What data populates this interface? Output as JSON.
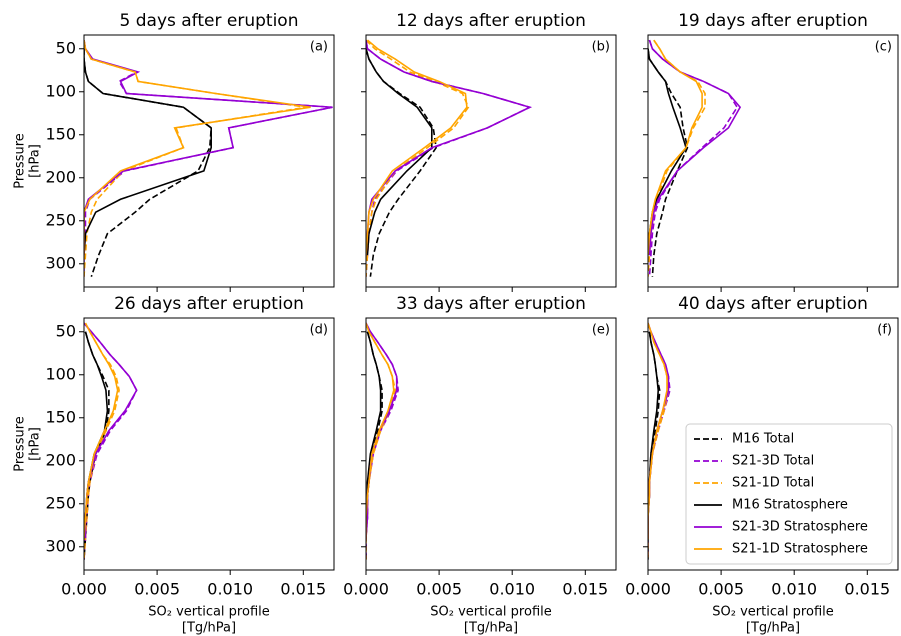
{
  "chart_data": [
    {
      "type": "line",
      "title": "5 days after eruption",
      "panel_label": "(a)",
      "ylabel": [
        "Pressure",
        "[hPa]"
      ],
      "y": [
        40,
        50,
        62,
        77,
        88,
        102,
        118,
        142,
        165,
        192,
        225,
        240,
        265,
        290,
        315
      ],
      "xlim": [
        0,
        0.0171
      ],
      "ylim": [
        327,
        34
      ],
      "xticks": [
        0,
        0.005,
        0.01,
        0.015
      ],
      "show_xticklabels": false,
      "yticks": [
        50,
        100,
        150,
        200,
        250,
        300
      ],
      "series": [
        {
          "color": "#000000",
          "dash": true,
          "values": [
            null,
            0,
            0,
            0.0001,
            0.0003,
            0.0013,
            0.0068,
            0.0087,
            0.0086,
            0.0078,
            0.0045,
            0.0035,
            0.0016,
            0.001,
            0.0005
          ]
        },
        {
          "color": "#9400d3",
          "dash": true,
          "values": [
            0,
            0.0001,
            0.0005,
            0.0036,
            0.0024,
            0.0029,
            0.017,
            0.0099,
            0.0102,
            0.0028,
            0.0004,
            0.0001,
            0.0001,
            0,
            0
          ]
        },
        {
          "color": "#ffa500",
          "dash": true,
          "values": [
            0,
            0.0001,
            0.0005,
            0.0035,
            0.0037,
            0.009,
            0.0152,
            0.0063,
            0.0068,
            0.0027,
            0.0009,
            0.0005,
            0.0002,
            0.0001,
            0
          ]
        },
        {
          "color": "#000000",
          "dash": false,
          "values": [
            null,
            0,
            0,
            0.0001,
            0.0003,
            0.0013,
            0.0068,
            0.0087,
            0.0087,
            0.0082,
            0.0025,
            0.0008,
            0.0001,
            0,
            null
          ]
        },
        {
          "color": "#9400d3",
          "dash": false,
          "values": [
            0,
            0.0001,
            0.0006,
            0.0037,
            0.0025,
            0.0029,
            0.017,
            0.0099,
            0.0102,
            0.0027,
            0.0003,
            0,
            0,
            0,
            null
          ]
        },
        {
          "color": "#ffa500",
          "dash": false,
          "values": [
            0,
            0.0001,
            0.0005,
            0.0035,
            0.0037,
            0.009,
            0.0155,
            0.0062,
            0.0068,
            0.0025,
            0.0004,
            0,
            0,
            0,
            null
          ]
        }
      ]
    },
    {
      "type": "line",
      "title": "12 days after eruption",
      "panel_label": "(b)",
      "y": [
        40,
        50,
        62,
        77,
        88,
        102,
        118,
        142,
        165,
        192,
        225,
        240,
        265,
        290,
        315
      ],
      "xlim": [
        0,
        0.0171
      ],
      "ylim": [
        327,
        34
      ],
      "xticks": [
        0,
        0.005,
        0.01,
        0.015
      ],
      "show_xticklabels": false,
      "yticks": [
        50,
        100,
        150,
        200,
        250,
        300
      ],
      "show_yticklabels": false,
      "series": [
        {
          "color": "#000000",
          "dash": true,
          "values": [
            null,
            0,
            0.0002,
            0.0007,
            0.0012,
            0.0023,
            0.0037,
            0.0046,
            0.0048,
            0.0037,
            0.0022,
            0.0016,
            0.0009,
            0.0005,
            0.0003
          ]
        },
        {
          "color": "#9400d3",
          "dash": true,
          "values": [
            0,
            0.0001,
            0.001,
            0.0026,
            0.0045,
            0.008,
            0.0112,
            0.0083,
            0.0046,
            0.0021,
            0.0006,
            0.0004,
            0.0002,
            0.0001,
            0
          ]
        },
        {
          "color": "#ffa500",
          "dash": true,
          "values": [
            0,
            0.0006,
            0.0017,
            0.003,
            0.0047,
            0.0066,
            0.007,
            0.006,
            0.0042,
            0.002,
            0.0007,
            0.0004,
            0.0002,
            0.0001,
            0
          ]
        },
        {
          "color": "#000000",
          "dash": false,
          "values": [
            null,
            0,
            0.0002,
            0.0007,
            0.0012,
            0.0022,
            0.0035,
            0.0045,
            0.0045,
            0.0028,
            0.001,
            0.0006,
            0.0002,
            0.0001,
            null
          ]
        },
        {
          "color": "#9400d3",
          "dash": false,
          "values": [
            0,
            0.0001,
            0.001,
            0.0026,
            0.0045,
            0.008,
            0.0112,
            0.0083,
            0.0045,
            0.002,
            0.0004,
            0.0002,
            0.0001,
            0,
            null
          ]
        },
        {
          "color": "#ffa500",
          "dash": false,
          "values": [
            0.0001,
            0.0008,
            0.002,
            0.0033,
            0.005,
            0.0068,
            0.0069,
            0.0058,
            0.004,
            0.0018,
            0.0005,
            0.0002,
            0.0001,
            0,
            null
          ]
        }
      ]
    },
    {
      "type": "line",
      "title": "19 days after eruption",
      "panel_label": "(c)",
      "y": [
        40,
        50,
        62,
        77,
        88,
        102,
        118,
        142,
        165,
        192,
        225,
        240,
        265,
        290,
        315
      ],
      "xlim": [
        0,
        0.0171
      ],
      "ylim": [
        327,
        34
      ],
      "xticks": [
        0,
        0.005,
        0.01,
        0.015
      ],
      "show_xticklabels": false,
      "yticks": [
        50,
        100,
        150,
        200,
        250,
        300
      ],
      "show_yticklabels": false,
      "series": [
        {
          "color": "#000000",
          "dash": true,
          "values": [
            null,
            0,
            0.0001,
            0.0007,
            0.0012,
            0.0016,
            0.0022,
            0.0024,
            0.0027,
            0.002,
            0.0012,
            0.001,
            0.0006,
            0.0004,
            0.0003
          ]
        },
        {
          "color": "#9400d3",
          "dash": true,
          "values": [
            0.0001,
            0.0003,
            0.001,
            0.0022,
            0.0038,
            0.0055,
            0.0061,
            0.0052,
            0.0037,
            0.002,
            0.0008,
            0.0005,
            0.0003,
            0.0002,
            0.0001
          ]
        },
        {
          "color": "#ffa500",
          "dash": true,
          "values": [
            0.0004,
            0.0008,
            0.0012,
            0.0022,
            0.0034,
            0.0039,
            0.0039,
            0.0031,
            0.0026,
            0.0013,
            0.0006,
            0.0004,
            0.0002,
            0.0001,
            0
          ]
        },
        {
          "color": "#000000",
          "dash": false,
          "values": [
            null,
            0,
            0.0001,
            0.0007,
            0.0012,
            0.0014,
            0.0017,
            0.0022,
            0.0026,
            0.0016,
            0.0006,
            0.0003,
            0.0001,
            0.0001,
            null
          ]
        },
        {
          "color": "#9400d3",
          "dash": false,
          "values": [
            0.0001,
            0.0003,
            0.001,
            0.0022,
            0.0038,
            0.0055,
            0.0063,
            0.0055,
            0.0038,
            0.002,
            0.0007,
            0.0004,
            0.0002,
            0.0001,
            null
          ]
        },
        {
          "color": "#ffa500",
          "dash": false,
          "values": [
            0.0004,
            0.0008,
            0.0012,
            0.0022,
            0.0033,
            0.0037,
            0.0037,
            0.003,
            0.0026,
            0.0012,
            0.0005,
            0.0003,
            0.0001,
            0,
            null
          ]
        }
      ]
    },
    {
      "type": "line",
      "title": "26 days after eruption",
      "panel_label": "(d)",
      "ylabel": [
        "Pressure",
        "[hPa]"
      ],
      "xlabel": [
        "SO₂ vertical profile",
        "[Tg/hPa]"
      ],
      "y": [
        40,
        50,
        62,
        77,
        88,
        102,
        118,
        142,
        165,
        192,
        225,
        240,
        265,
        290,
        315
      ],
      "xlim": [
        0,
        0.0171
      ],
      "ylim": [
        327,
        34
      ],
      "xticks": [
        {
          "value": 0,
          "label": "0.000"
        },
        0.005,
        {
          "value": 0.01,
          "label": "0.010"
        },
        0.015
      ],
      "yticks": [
        50,
        100,
        150,
        200,
        250,
        300
      ],
      "series": [
        {
          "color": "#000000",
          "dash": true,
          "values": [
            null,
            0.0001,
            0.0003,
            0.0006,
            0.0009,
            0.0013,
            0.0017,
            0.0017,
            0.0015,
            0.0008,
            0.0004,
            0.0003,
            0.0002,
            0.0001,
            0
          ]
        },
        {
          "color": "#9400d3",
          "dash": true,
          "values": [
            0,
            0.0005,
            0.0011,
            0.0018,
            0.0024,
            0.0031,
            0.0036,
            0.0029,
            0.0018,
            0.0009,
            0.0004,
            0.0003,
            0.0002,
            0.0001,
            0
          ]
        },
        {
          "color": "#ffa500",
          "dash": true,
          "values": [
            0.0001,
            0.0004,
            0.0008,
            0.0013,
            0.0018,
            0.0022,
            0.0024,
            0.0021,
            0.0015,
            0.0008,
            0.0004,
            0.0003,
            0.0002,
            0.0001,
            0
          ]
        },
        {
          "color": "#000000",
          "dash": false,
          "values": [
            null,
            0.0001,
            0.0003,
            0.0006,
            0.0009,
            0.0012,
            0.0015,
            0.0016,
            0.0014,
            0.0007,
            0.0003,
            0.0002,
            0.0001,
            0,
            null
          ]
        },
        {
          "color": "#9400d3",
          "dash": false,
          "values": [
            0,
            0.0005,
            0.0011,
            0.0018,
            0.0024,
            0.0031,
            0.0036,
            0.0028,
            0.0017,
            0.0008,
            0.0003,
            0.0002,
            0.0001,
            0.0001,
            null
          ]
        },
        {
          "color": "#ffa500",
          "dash": false,
          "values": [
            0.0001,
            0.0004,
            0.0008,
            0.0013,
            0.0017,
            0.0021,
            0.0023,
            0.002,
            0.0014,
            0.0007,
            0.0003,
            0.0002,
            0.0001,
            0,
            null
          ]
        }
      ]
    },
    {
      "type": "line",
      "title": "33 days after eruption",
      "panel_label": "(e)",
      "xlabel": [
        "SO₂ vertical profile",
        "[Tg/hPa]"
      ],
      "y": [
        40,
        50,
        62,
        77,
        88,
        102,
        118,
        142,
        165,
        192,
        225,
        240,
        265,
        290,
        315
      ],
      "xlim": [
        0,
        0.0171
      ],
      "ylim": [
        327,
        34
      ],
      "xticks": [
        {
          "value": 0,
          "label": "0.000"
        },
        0.005,
        {
          "value": 0.01,
          "label": "0.010"
        },
        0.015
      ],
      "yticks": [
        50,
        100,
        150,
        200,
        250,
        300
      ],
      "show_yticklabels": false,
      "series": [
        {
          "color": "#000000",
          "dash": true,
          "values": [
            null,
            0.0001,
            0.0003,
            0.0005,
            0.0007,
            0.0009,
            0.0011,
            0.0011,
            0.0008,
            0.0004,
            0.0002,
            0.0001,
            0.0001,
            0,
            0
          ]
        },
        {
          "color": "#9400d3",
          "dash": true,
          "values": [
            0,
            0.0003,
            0.0008,
            0.0014,
            0.0018,
            0.0021,
            0.0022,
            0.0017,
            0.001,
            0.0005,
            0.0002,
            0.0001,
            0.0001,
            0,
            0
          ]
        },
        {
          "color": "#ffa500",
          "dash": true,
          "values": [
            0,
            0.0002,
            0.0006,
            0.0011,
            0.0015,
            0.0018,
            0.002,
            0.0016,
            0.001,
            0.0005,
            0.0002,
            0.0001,
            0.0001,
            0,
            0
          ]
        },
        {
          "color": "#000000",
          "dash": false,
          "values": [
            null,
            0.0001,
            0.0003,
            0.0005,
            0.0007,
            0.0009,
            0.001,
            0.001,
            0.0007,
            0.0003,
            0.0001,
            0.0001,
            0,
            0,
            null
          ]
        },
        {
          "color": "#9400d3",
          "dash": false,
          "values": [
            0,
            0.0003,
            0.0008,
            0.0014,
            0.0018,
            0.0021,
            0.0021,
            0.0016,
            0.0009,
            0.0004,
            0.0002,
            0.0001,
            0.0001,
            0,
            null
          ]
        },
        {
          "color": "#ffa500",
          "dash": false,
          "values": [
            0,
            0.0002,
            0.0006,
            0.0011,
            0.0015,
            0.0018,
            0.0019,
            0.0015,
            0.0009,
            0.0004,
            0.0002,
            0.0001,
            0,
            0,
            null
          ]
        }
      ]
    },
    {
      "type": "line",
      "title": "40 days after eruption",
      "panel_label": "(f)",
      "xlabel": [
        "SO₂ vertical profile",
        "[Tg/hPa]"
      ],
      "legend": "lower right",
      "y": [
        40,
        50,
        62,
        77,
        88,
        102,
        118,
        142,
        165,
        192,
        225,
        240,
        265,
        290,
        315
      ],
      "xlim": [
        0,
        0.0171
      ],
      "ylim": [
        327,
        34
      ],
      "xticks": [
        {
          "value": 0,
          "label": "0.000"
        },
        0.005,
        {
          "value": 0.01,
          "label": "0.010"
        },
        0.015
      ],
      "yticks": [
        50,
        100,
        150,
        200,
        250,
        300
      ],
      "show_yticklabels": false,
      "series": [
        {
          "name": "M16 Total",
          "color": "#000000",
          "dash": true,
          "values": [
            null,
            0.0001,
            0.0002,
            0.0004,
            0.0005,
            0.0006,
            0.0008,
            0.0007,
            0.0005,
            0.0002,
            0.0001,
            0.0001,
            0,
            0,
            0
          ]
        },
        {
          "name": "S21-3D Total",
          "color": "#9400d3",
          "dash": true,
          "values": [
            0,
            0.0002,
            0.0005,
            0.0009,
            0.0012,
            0.0014,
            0.0015,
            0.0011,
            0.0007,
            0.0003,
            0.0001,
            0.0001,
            0,
            0,
            0
          ]
        },
        {
          "name": "S21-1D Total",
          "color": "#ffa500",
          "dash": true,
          "values": [
            0,
            0.0002,
            0.0004,
            0.0008,
            0.0011,
            0.0013,
            0.0014,
            0.0011,
            0.0007,
            0.0003,
            0.0001,
            0.0001,
            0,
            0,
            0
          ]
        },
        {
          "name": "M16 Stratosphere",
          "color": "#000000",
          "dash": false,
          "values": [
            null,
            0.0001,
            0.0002,
            0.0004,
            0.0005,
            0.0006,
            0.0007,
            0.0006,
            0.0004,
            0.0002,
            0.0001,
            0,
            0,
            0,
            null
          ]
        },
        {
          "name": "S21-3D Stratosphere",
          "color": "#9400d3",
          "dash": false,
          "values": [
            0,
            0.0002,
            0.0005,
            0.0009,
            0.0012,
            0.0014,
            0.0014,
            0.001,
            0.0006,
            0.0003,
            0.0001,
            0.0001,
            0,
            0,
            null
          ]
        },
        {
          "name": "S21-1D Stratosphere",
          "color": "#ffa500",
          "dash": false,
          "values": [
            0,
            0.0002,
            0.0004,
            0.0008,
            0.0011,
            0.0013,
            0.0013,
            0.001,
            0.0006,
            0.0003,
            0.0001,
            0.0001,
            0,
            0,
            null
          ]
        }
      ]
    }
  ]
}
